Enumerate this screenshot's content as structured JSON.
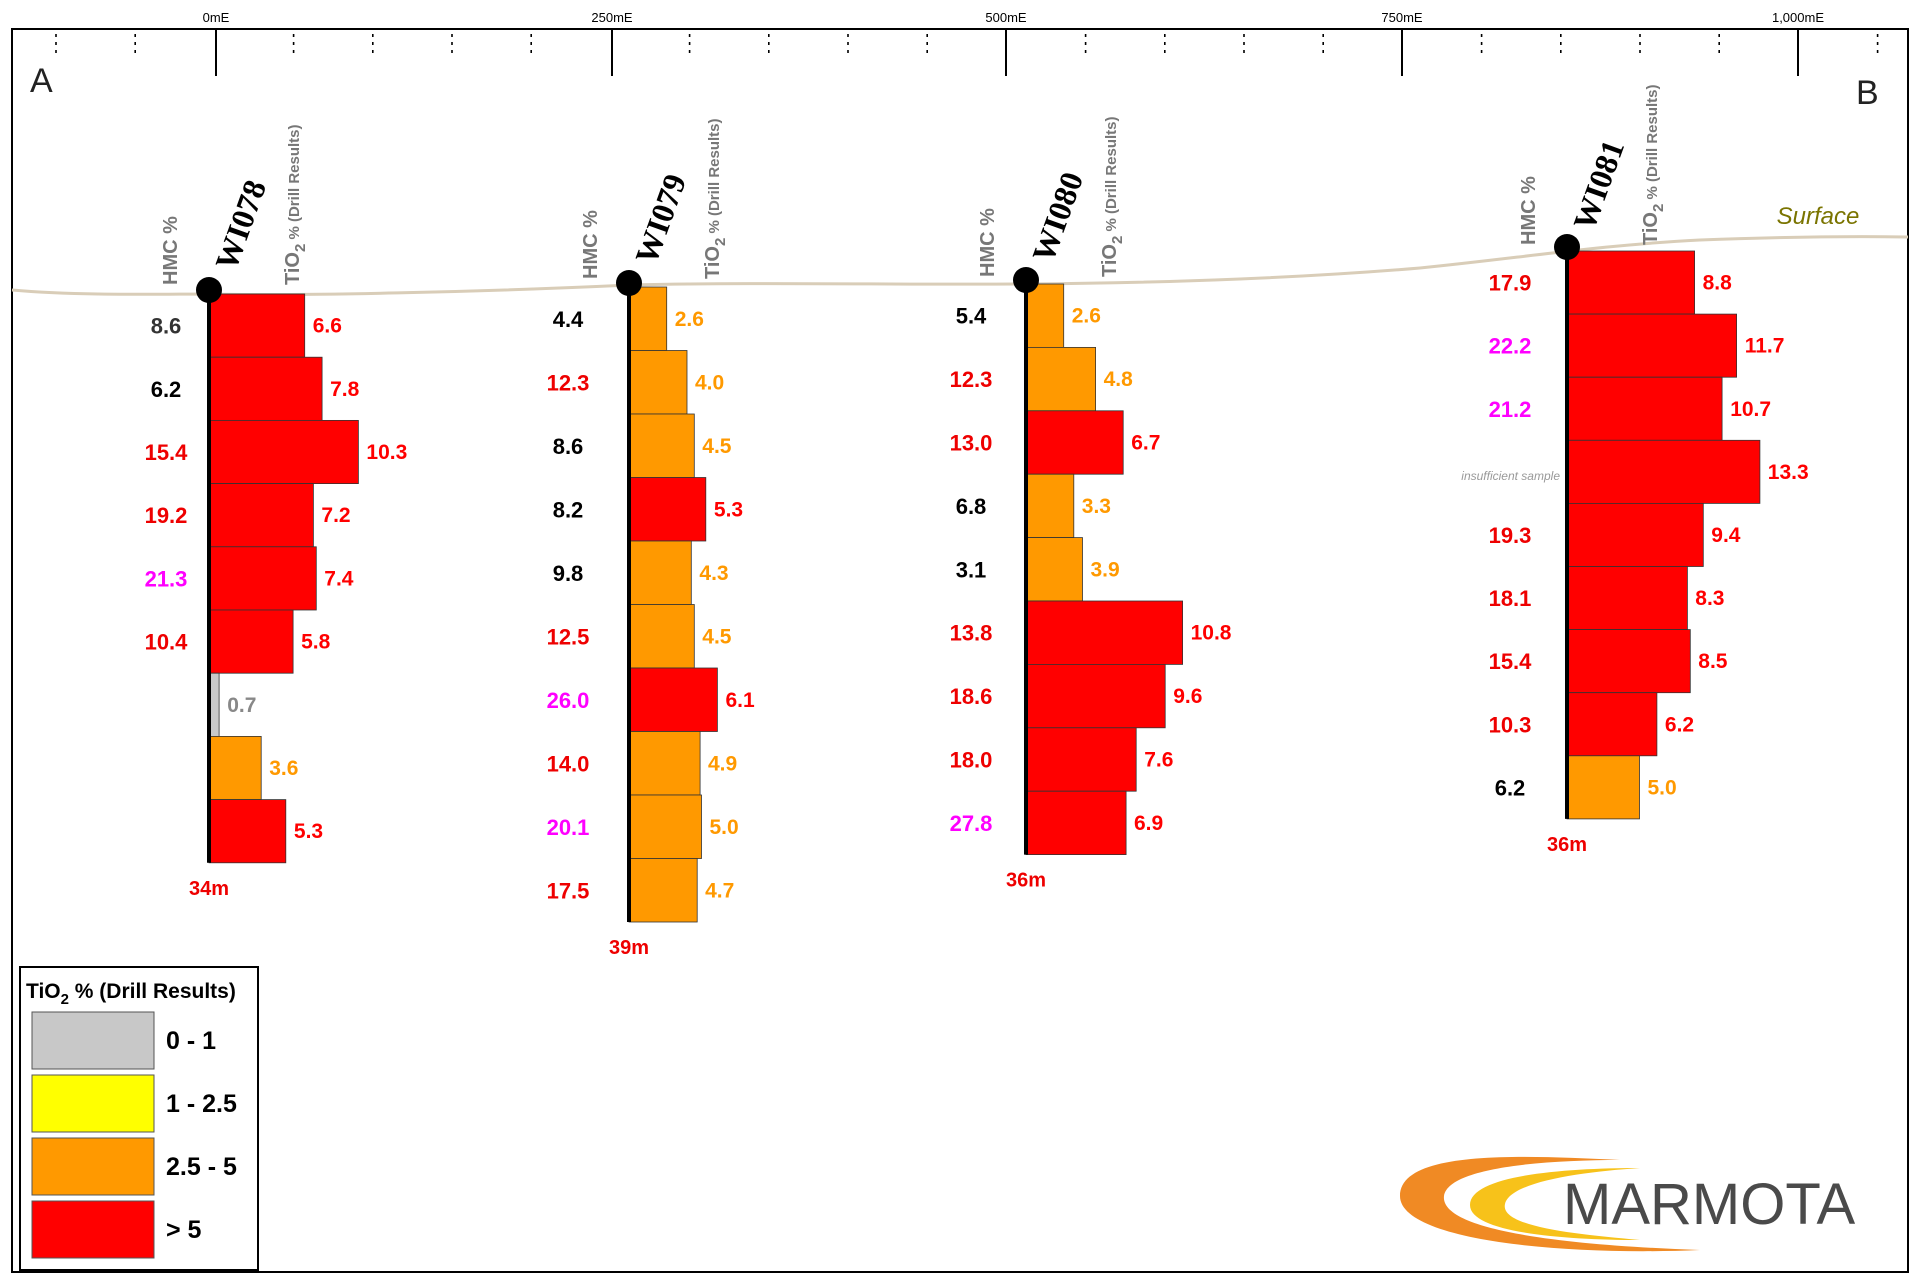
{
  "axis": {
    "labels": [
      "0mE",
      "250mE",
      "500mE",
      "750mE",
      "1,000mE"
    ]
  },
  "section": {
    "start_label": "A",
    "end_label": "B",
    "surface_label": "Surface"
  },
  "column_headers": {
    "hmc": "HMC %",
    "tio2_prefix": "TiO",
    "tio2_sub": "2",
    "tio2_suffix": " % (Drill Results)"
  },
  "holes": [
    {
      "id": "WI078",
      "depth_label": "34m",
      "intervals": [
        {
          "hmc": "8.6",
          "hmc_color": "#333333",
          "tio2": "6.6"
        },
        {
          "hmc": "6.2",
          "hmc_color": "#000000",
          "tio2": "7.8"
        },
        {
          "hmc": "15.4",
          "hmc_color": "#ee0000",
          "tio2": "10.3"
        },
        {
          "hmc": "19.2",
          "hmc_color": "#ee0000",
          "tio2": "7.2"
        },
        {
          "hmc": "21.3",
          "hmc_color": "#ff00ff",
          "tio2": "7.4"
        },
        {
          "hmc": "10.4",
          "hmc_color": "#ee0000",
          "tio2": "5.8"
        },
        {
          "hmc": "",
          "hmc_color": "#000000",
          "tio2": "0.7"
        },
        {
          "hmc": "",
          "hmc_color": "#000000",
          "tio2": "3.6"
        },
        {
          "hmc": "",
          "hmc_color": "#000000",
          "tio2": "5.3"
        }
      ]
    },
    {
      "id": "WI079",
      "depth_label": "39m",
      "intervals": [
        {
          "hmc": "4.4",
          "hmc_color": "#000000",
          "tio2": "2.6"
        },
        {
          "hmc": "12.3",
          "hmc_color": "#ee0000",
          "tio2": "4.0"
        },
        {
          "hmc": "8.6",
          "hmc_color": "#000000",
          "tio2": "4.5"
        },
        {
          "hmc": "8.2",
          "hmc_color": "#000000",
          "tio2": "5.3"
        },
        {
          "hmc": "9.8",
          "hmc_color": "#000000",
          "tio2": "4.3"
        },
        {
          "hmc": "12.5",
          "hmc_color": "#ee0000",
          "tio2": "4.5"
        },
        {
          "hmc": "26.0",
          "hmc_color": "#ff00ff",
          "tio2": "6.1"
        },
        {
          "hmc": "14.0",
          "hmc_color": "#ee0000",
          "tio2": "4.9"
        },
        {
          "hmc": "20.1",
          "hmc_color": "#ff00ff",
          "tio2": "5.0"
        },
        {
          "hmc": "17.5",
          "hmc_color": "#ee0000",
          "tio2": "4.7"
        }
      ]
    },
    {
      "id": "WI080",
      "depth_label": "36m",
      "intervals": [
        {
          "hmc": "5.4",
          "hmc_color": "#000000",
          "tio2": "2.6"
        },
        {
          "hmc": "12.3",
          "hmc_color": "#ee0000",
          "tio2": "4.8"
        },
        {
          "hmc": "13.0",
          "hmc_color": "#ee0000",
          "tio2": "6.7"
        },
        {
          "hmc": "6.8",
          "hmc_color": "#000000",
          "tio2": "3.3"
        },
        {
          "hmc": "3.1",
          "hmc_color": "#000000",
          "tio2": "3.9"
        },
        {
          "hmc": "13.8",
          "hmc_color": "#ee0000",
          "tio2": "10.8"
        },
        {
          "hmc": "18.6",
          "hmc_color": "#ee0000",
          "tio2": "9.6"
        },
        {
          "hmc": "18.0",
          "hmc_color": "#ee0000",
          "tio2": "7.6"
        },
        {
          "hmc": "27.8",
          "hmc_color": "#ff00ff",
          "tio2": "6.9"
        }
      ]
    },
    {
      "id": "WI081",
      "depth_label": "36m",
      "intervals": [
        {
          "hmc": "17.9",
          "hmc_color": "#ee0000",
          "tio2": "8.8"
        },
        {
          "hmc": "22.2",
          "hmc_color": "#ff00ff",
          "tio2": "11.7"
        },
        {
          "hmc": "21.2",
          "hmc_color": "#ff00ff",
          "tio2": "10.7"
        },
        {
          "hmc": "insufficient sample",
          "hmc_color": "#999999",
          "tio2": "13.3"
        },
        {
          "hmc": "19.3",
          "hmc_color": "#ee0000",
          "tio2": "9.4"
        },
        {
          "hmc": "18.1",
          "hmc_color": "#ee0000",
          "tio2": "8.3"
        },
        {
          "hmc": "15.4",
          "hmc_color": "#ee0000",
          "tio2": "8.5"
        },
        {
          "hmc": "10.3",
          "hmc_color": "#ee0000",
          "tio2": "6.2"
        },
        {
          "hmc": "6.2",
          "hmc_color": "#000000",
          "tio2": "5.0"
        }
      ]
    }
  ],
  "legend": {
    "title_prefix": "TiO",
    "title_sub": "2",
    "title_suffix": " % (Drill Results)",
    "items": [
      {
        "label": "0 - 1",
        "color": "#c8c8c8"
      },
      {
        "label": "1 - 2.5",
        "color": "#ffff00"
      },
      {
        "label": "2.5 - 5",
        "color": "#ff9900"
      },
      {
        "label": "> 5",
        "color": "#ff0000"
      }
    ]
  },
  "logo": {
    "text": "MARMOTA",
    "colors": [
      "#f08a24",
      "#f7c21a"
    ]
  },
  "colors": {
    "surface": "#d9cdb8",
    "high": "#ff0000",
    "mid": "#ff9900",
    "low_mid": "#ffff00",
    "low": "#c8c8c8",
    "mid_text": "#ff9900",
    "low_text": "#888888"
  }
}
